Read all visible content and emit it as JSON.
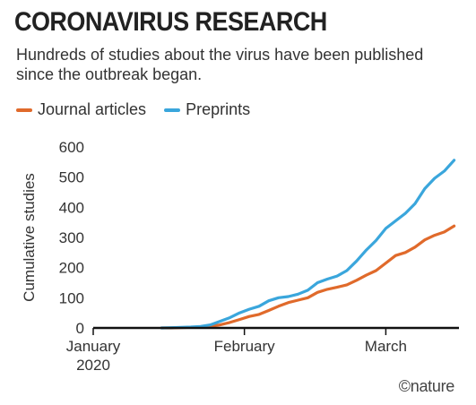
{
  "header": {
    "title": "CORONAVIRUS RESEARCH",
    "subtitle": "Hundreds of studies about the virus have been published since the outbreak began."
  },
  "legend": {
    "journal_label": "Journal articles",
    "preprints_label": "Preprints"
  },
  "credit": "©nature",
  "colors": {
    "journal": "#e06a2b",
    "preprints": "#3aa6dc",
    "axis": "#111111"
  },
  "chart_data": {
    "type": "line",
    "title": "CORONAVIRUS RESEARCH",
    "subtitle": "Hundreds of studies about the virus have been published since the outbreak began.",
    "xlabel": "",
    "ylabel": "Cumulative studies",
    "ylim": [
      0,
      600
    ],
    "yticks": [
      0,
      100,
      200,
      300,
      400,
      500,
      600
    ],
    "xticks": [
      {
        "label": "January 2020",
        "date": "2020-01-01"
      },
      {
        "label": "February",
        "date": "2020-02-01"
      },
      {
        "label": "March",
        "date": "2020-03-01"
      }
    ],
    "grid": false,
    "legend_position": "top-left",
    "x": [
      "2020-01-15",
      "2020-01-17",
      "2020-01-19",
      "2020-01-21",
      "2020-01-23",
      "2020-01-25",
      "2020-01-27",
      "2020-01-29",
      "2020-01-31",
      "2020-02-02",
      "2020-02-04",
      "2020-02-06",
      "2020-02-08",
      "2020-02-10",
      "2020-02-12",
      "2020-02-14",
      "2020-02-16",
      "2020-02-18",
      "2020-02-20",
      "2020-02-22",
      "2020-02-24",
      "2020-02-26",
      "2020-02-28",
      "2020-03-01",
      "2020-03-03",
      "2020-03-05",
      "2020-03-07",
      "2020-03-09",
      "2020-03-11",
      "2020-03-13",
      "2020-03-15"
    ],
    "series": [
      {
        "name": "Journal articles",
        "values": [
          0,
          0,
          1,
          2,
          3,
          5,
          10,
          18,
          28,
          38,
          45,
          58,
          72,
          84,
          92,
          100,
          118,
          128,
          135,
          143,
          158,
          175,
          190,
          215,
          240,
          250,
          268,
          292,
          307,
          318,
          338
        ]
      },
      {
        "name": "Preprints",
        "values": [
          0,
          1,
          2,
          3,
          5,
          10,
          22,
          34,
          50,
          62,
          72,
          90,
          100,
          104,
          112,
          125,
          150,
          162,
          172,
          190,
          222,
          258,
          290,
          330,
          355,
          380,
          412,
          462,
          496,
          520,
          556
        ]
      }
    ]
  }
}
